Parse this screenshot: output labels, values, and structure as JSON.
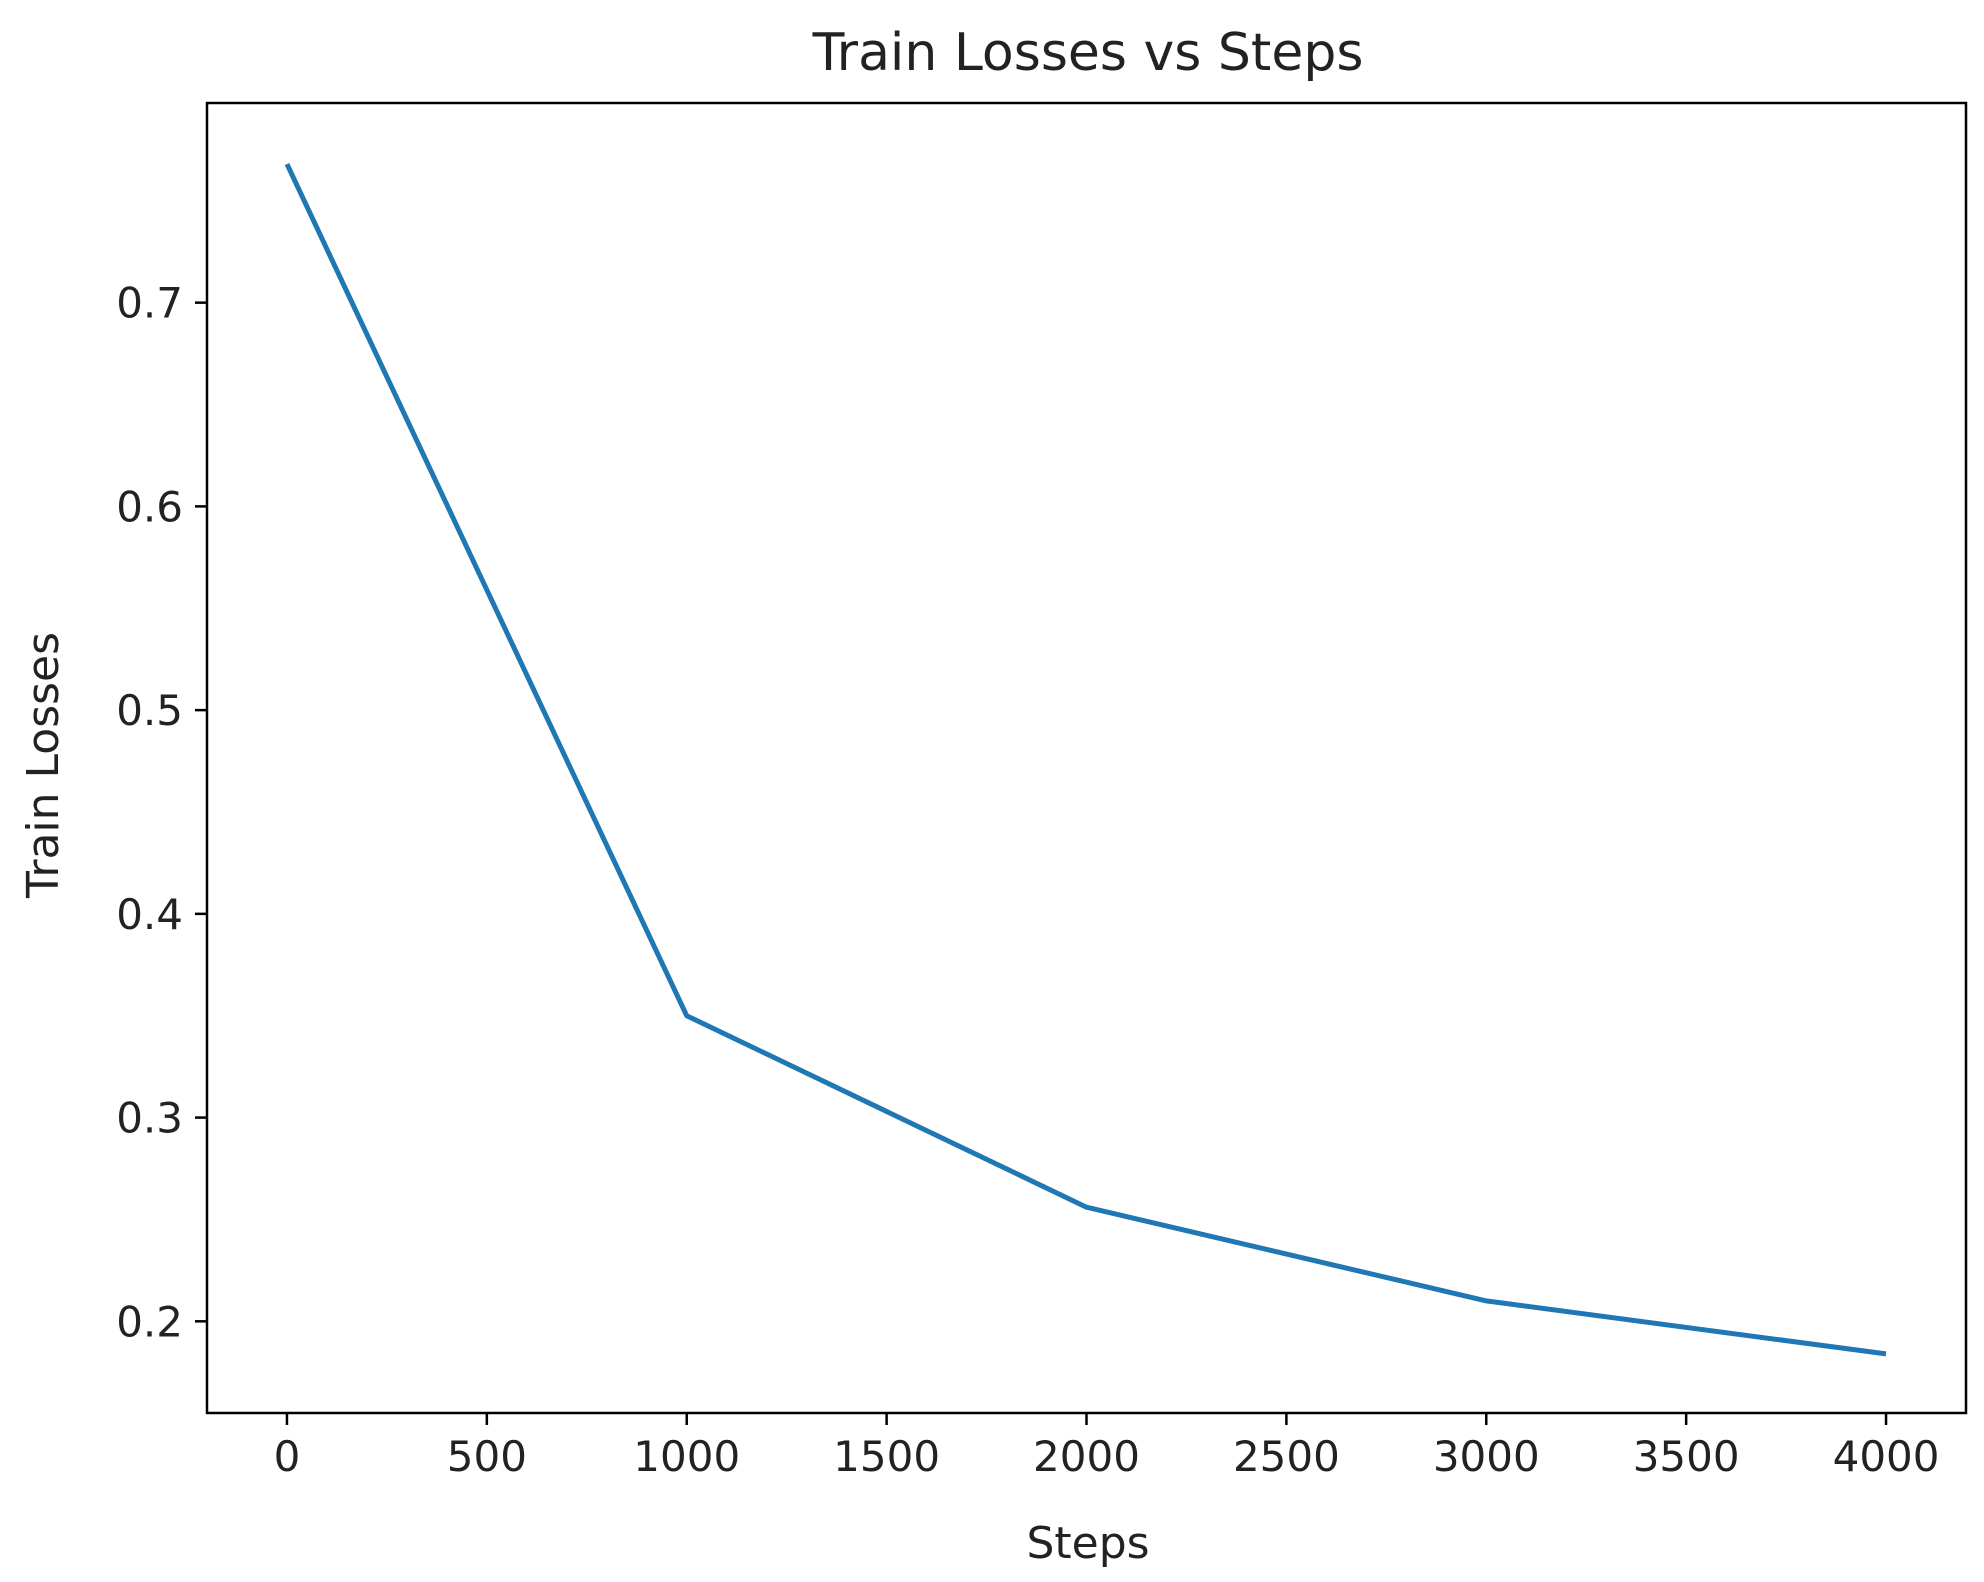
{
  "chart_data": {
    "type": "line",
    "title": "Train Losses vs Steps",
    "xlabel": "Steps",
    "ylabel": "Train Losses",
    "xlim": [
      -200,
      4200
    ],
    "ylim": [
      0.155,
      0.798
    ],
    "xticks": [
      0,
      500,
      1000,
      1500,
      2000,
      2500,
      3000,
      3500,
      4000
    ],
    "xtick_labels": [
      "0",
      "500",
      "1000",
      "1500",
      "2000",
      "2500",
      "3000",
      "3500",
      "4000"
    ],
    "yticks": [
      0.2,
      0.3,
      0.4,
      0.5,
      0.6,
      0.7
    ],
    "ytick_labels": [
      "0.2",
      "0.3",
      "0.4",
      "0.5",
      "0.6",
      "0.7"
    ],
    "grid": false,
    "series": [
      {
        "color": "#1f77b4",
        "x": [
          0,
          1000,
          2000,
          3000,
          4000
        ],
        "y": [
          0.768,
          0.35,
          0.256,
          0.21,
          0.184
        ]
      }
    ]
  }
}
